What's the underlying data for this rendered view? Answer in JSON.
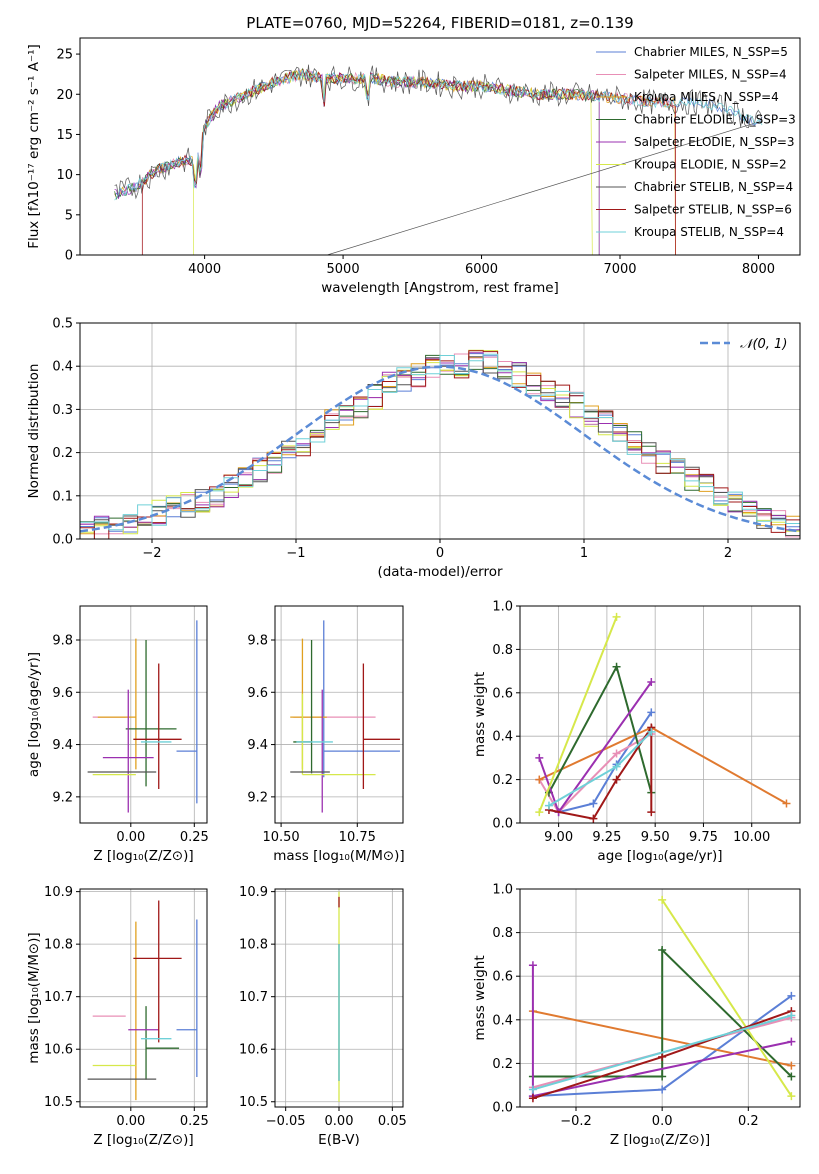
{
  "colors": {
    "chabrier_miles": "#5b7fd6",
    "salpeter_miles": "#e88fb6",
    "kroupa_miles": "#e0a020",
    "chabrier_elodie": "#2e6a2e",
    "salpeter_elodie": "#9b30b0",
    "kroupa_elodie": "#d6e84a",
    "chabrier_stelib": "#555555",
    "salpeter_stelib": "#a01818",
    "kroupa_stelib": "#6fd0d8",
    "orange_line": "#e07a30",
    "normal": "#5b8bd6"
  },
  "chart_data": [
    {
      "id": "spectrum",
      "type": "line",
      "title": "PLATE=0760, MJD=52264, FIBERID=0181, z=0.139",
      "xlabel": "wavelength [Angstrom, rest frame]",
      "ylabel": "Flux [fλ10⁻¹⁷ erg cm⁻² s⁻¹ A⁻¹]",
      "xlim": [
        3100,
        8300
      ],
      "ylim": [
        0,
        27
      ],
      "xticks": [
        4000,
        5000,
        6000,
        7000,
        8000
      ],
      "yticks": [
        0,
        5,
        10,
        15,
        20,
        25
      ],
      "legend_position": "top-right",
      "legend": [
        "Chabrier MILES, N_SSP=5",
        "Salpeter MILES, N_SSP=4",
        "Kroupa MILES, N_SSP=4",
        "Chabrier ELODIE, N_SSP=3",
        "Salpeter ELODIE, N_SSP=3",
        "Kroupa ELODIE, N_SSP=2",
        "Chabrier STELIB, N_SSP=4",
        "Salpeter STELIB, N_SSP=6",
        "Kroupa STELIB, N_SSP=4"
      ],
      "continuum": [
        [
          3350,
          7.5
        ],
        [
          3500,
          8.5
        ],
        [
          3650,
          10.5
        ],
        [
          3800,
          11.5
        ],
        [
          3950,
          12
        ],
        [
          4000,
          16
        ],
        [
          4100,
          18.5
        ],
        [
          4300,
          20
        ],
        [
          4500,
          21.5
        ],
        [
          4700,
          22.5
        ],
        [
          4860,
          22
        ],
        [
          5000,
          22
        ],
        [
          5200,
          22
        ],
        [
          5400,
          21.5
        ],
        [
          5600,
          21.5
        ],
        [
          5800,
          21
        ],
        [
          6000,
          21
        ],
        [
          6200,
          20.5
        ],
        [
          6400,
          20
        ],
        [
          6600,
          20
        ],
        [
          6800,
          19.8
        ],
        [
          7000,
          19.5
        ],
        [
          7200,
          19
        ],
        [
          7400,
          19
        ],
        [
          7600,
          19
        ],
        [
          7800,
          18
        ],
        [
          8000,
          16.5
        ]
      ]
    },
    {
      "id": "residuals",
      "type": "histogram",
      "xlabel": "(data-model)/error",
      "ylabel": "Normed distribution",
      "xlim": [
        -2.5,
        2.5
      ],
      "ylim": [
        0,
        0.5
      ],
      "xticks": [
        -2,
        -1,
        0,
        1,
        2
      ],
      "yticks": [
        0.0,
        0.1,
        0.2,
        0.3,
        0.4,
        0.5
      ],
      "grid": true,
      "legend_position": "top-right",
      "legend": [
        "𝒩(0, 1)"
      ],
      "bin_width": 0.1,
      "bin_start": -2.5,
      "reference_heights": [
        0.02,
        0.025,
        0.03,
        0.04,
        0.05,
        0.06,
        0.07,
        0.08,
        0.09,
        0.1,
        0.12,
        0.14,
        0.16,
        0.18,
        0.2,
        0.22,
        0.25,
        0.27,
        0.29,
        0.31,
        0.33,
        0.36,
        0.37,
        0.38,
        0.4,
        0.4,
        0.4,
        0.42,
        0.41,
        0.4,
        0.38,
        0.36,
        0.35,
        0.33,
        0.31,
        0.29,
        0.27,
        0.25,
        0.22,
        0.2,
        0.18,
        0.16,
        0.14,
        0.12,
        0.1,
        0.08,
        0.06,
        0.05,
        0.04,
        0.03
      ]
    },
    {
      "id": "Z-age",
      "type": "errorbar",
      "xlabel": "Z [log₁₀(Z/Z⊙)]",
      "ylabel": "age  [log₁₀(age/yr)]",
      "xlim": [
        -0.2,
        0.3
      ],
      "ylim": [
        9.1,
        9.93
      ],
      "xticks": [
        0.0,
        0.25
      ],
      "yticks": [
        9.2,
        9.4,
        9.6,
        9.8
      ],
      "points": [
        {
          "color": "chabrier_miles",
          "x": 0.26,
          "y": 9.375,
          "xerr": [
            0.08,
            0.0
          ],
          "yerr": [
            0.2,
            0.5
          ]
        },
        {
          "color": "salpeter_miles",
          "x": -0.15,
          "y": 9.505,
          "xerr": [
            0.0,
            0.13
          ],
          "yerr": [
            0.0,
            0.0
          ]
        },
        {
          "color": "kroupa_miles",
          "x": 0.02,
          "y": 9.505,
          "xerr": [
            0.15,
            0.0
          ],
          "yerr": [
            0.2,
            0.3
          ]
        },
        {
          "color": "chabrier_elodie",
          "x": 0.06,
          "y": 9.46,
          "xerr": [
            0.08,
            0.12
          ],
          "yerr": [
            0.22,
            0.34
          ]
        },
        {
          "color": "salpeter_elodie",
          "x": -0.01,
          "y": 9.35,
          "xerr": [
            0.1,
            0.1
          ],
          "yerr": [
            0.21,
            0.26
          ]
        },
        {
          "color": "kroupa_elodie",
          "x": -0.15,
          "y": 9.285,
          "xerr": [
            0.0,
            0.17
          ],
          "yerr": [
            0.0,
            0.0
          ]
        },
        {
          "color": "chabrier_stelib",
          "x": -0.05,
          "y": 9.295,
          "xerr": [
            0.12,
            0.15
          ],
          "yerr": [
            0.0,
            0.0
          ]
        },
        {
          "color": "salpeter_stelib",
          "x": 0.11,
          "y": 9.42,
          "xerr": [
            0.1,
            0.09
          ],
          "yerr": [
            0.19,
            0.29
          ]
        },
        {
          "color": "kroupa_stelib",
          "x": 0.04,
          "y": 9.41,
          "xerr": [
            0.0,
            0.12
          ],
          "yerr": [
            0.0,
            0.0
          ]
        }
      ]
    },
    {
      "id": "mass-age",
      "type": "errorbar",
      "xlabel": "mass [log₁₀(M/M⊙)]",
      "ylabel": "",
      "xlim": [
        10.48,
        10.9
      ],
      "ylim": [
        9.1,
        9.93
      ],
      "xticks": [
        10.5,
        10.75
      ],
      "yticks": [
        9.2,
        9.4,
        9.6,
        9.8
      ],
      "points": [
        {
          "color": "chabrier_miles",
          "x": 10.64,
          "y": 9.375,
          "xerr": [
            0.0,
            0.25
          ],
          "yerr": [
            0.1,
            0.5
          ]
        },
        {
          "color": "salpeter_miles",
          "x": 10.66,
          "y": 9.505,
          "xerr": [
            0.12,
            0.15
          ],
          "yerr": [
            0.0,
            0.0
          ]
        },
        {
          "color": "kroupa_miles",
          "x": 10.57,
          "y": 9.505,
          "xerr": [
            0.04,
            0.08
          ],
          "yerr": [
            0.2,
            0.3
          ]
        },
        {
          "color": "chabrier_elodie",
          "x": 10.6,
          "y": 9.41,
          "xerr": [
            0.06,
            0.0
          ],
          "yerr": [
            0.12,
            0.39
          ]
        },
        {
          "color": "salpeter_elodie",
          "x": 10.635,
          "y": 9.35,
          "xerr": [
            0.0,
            0.0
          ],
          "yerr": [
            0.21,
            0.26
          ]
        },
        {
          "color": "kroupa_elodie",
          "x": 10.57,
          "y": 9.285,
          "xerr": [
            0.0,
            0.24
          ],
          "yerr": [
            0.0,
            0.31
          ]
        },
        {
          "color": "chabrier_stelib",
          "x": 10.53,
          "y": 9.295,
          "xerr": [
            0.0,
            0.13
          ],
          "yerr": [
            0.0,
            0.0
          ]
        },
        {
          "color": "salpeter_stelib",
          "x": 10.77,
          "y": 9.42,
          "xerr": [
            0.0,
            0.12
          ],
          "yerr": [
            0.19,
            0.29
          ]
        },
        {
          "color": "kroupa_stelib",
          "x": 10.62,
          "y": 9.41,
          "xerr": [
            0.07,
            0.05
          ],
          "yerr": [
            0.0,
            0.0
          ]
        }
      ]
    },
    {
      "id": "age-weight",
      "type": "line",
      "xlabel": "age  [log₁₀(age/yr)]",
      "ylabel": "mass weight",
      "xlim": [
        8.8,
        10.25
      ],
      "ylim": [
        0,
        1.0
      ],
      "xticks": [
        9.0,
        9.25,
        9.5,
        9.75,
        10.0
      ],
      "yticks": [
        0.0,
        0.2,
        0.4,
        0.6,
        0.8,
        1.0
      ],
      "grid": true,
      "series": [
        {
          "color": "chabrier_miles",
          "x": [
            9.0,
            9.18,
            9.3,
            9.48
          ],
          "y": [
            0.05,
            0.09,
            0.27,
            0.51
          ]
        },
        {
          "color": "salpeter_miles",
          "x": [
            8.9,
            9.0,
            9.3,
            9.48
          ],
          "y": [
            0.2,
            0.05,
            0.32,
            0.41
          ]
        },
        {
          "color": "orange_line",
          "x": [
            8.9,
            9.48,
            10.18
          ],
          "y": [
            0.2,
            0.44,
            0.09
          ]
        },
        {
          "color": "chabrier_elodie",
          "x": [
            8.95,
            9.3,
            9.48
          ],
          "y": [
            0.14,
            0.72,
            0.14
          ]
        },
        {
          "color": "salpeter_elodie",
          "x": [
            8.9,
            9.0,
            9.48
          ],
          "y": [
            0.3,
            0.05,
            0.65
          ]
        },
        {
          "color": "kroupa_elodie",
          "x": [
            8.9,
            9.3
          ],
          "y": [
            0.05,
            0.95
          ]
        },
        {
          "color": "salpeter_stelib",
          "x": [
            8.95,
            9.18,
            9.3,
            9.48,
            9.48
          ],
          "y": [
            0.06,
            0.02,
            0.2,
            0.44,
            0.05
          ]
        },
        {
          "color": "kroupa_stelib",
          "x": [
            8.95,
            9.3,
            9.48
          ],
          "y": [
            0.08,
            0.26,
            0.42
          ]
        }
      ]
    },
    {
      "id": "Z-mass",
      "type": "errorbar",
      "xlabel": "Z [log₁₀(Z/Z⊙)]",
      "ylabel": "mass [log₁₀(M/M⊙)]",
      "xlim": [
        -0.2,
        0.3
      ],
      "ylim": [
        10.49,
        10.905
      ],
      "xticks": [
        0.0,
        0.25
      ],
      "yticks": [
        10.5,
        10.6,
        10.7,
        10.8,
        10.9
      ],
      "points": [
        {
          "color": "chabrier_miles",
          "x": 0.26,
          "y": 10.637,
          "xerr": [
            0.08,
            0.0
          ],
          "yerr": [
            0.09,
            0.21
          ]
        },
        {
          "color": "salpeter_miles",
          "x": -0.15,
          "y": 10.663,
          "xerr": [
            0.0,
            0.13
          ],
          "yerr": [
            0.0,
            0.0
          ]
        },
        {
          "color": "kroupa_miles",
          "x": 0.02,
          "y": 10.573,
          "xerr": [
            0.0,
            0.0
          ],
          "yerr": [
            0.07,
            0.27
          ]
        },
        {
          "color": "chabrier_elodie",
          "x": 0.06,
          "y": 10.602,
          "xerr": [
            0.0,
            0.13
          ],
          "yerr": [
            0.06,
            0.08
          ]
        },
        {
          "color": "salpeter_elodie",
          "x": -0.01,
          "y": 10.637,
          "xerr": [
            0.0,
            0.12
          ],
          "yerr": [
            0.0,
            0.0
          ]
        },
        {
          "color": "kroupa_elodie",
          "x": -0.15,
          "y": 10.569,
          "xerr": [
            0.0,
            0.17
          ],
          "yerr": [
            0.0,
            0.0
          ]
        },
        {
          "color": "chabrier_stelib",
          "x": -0.05,
          "y": 10.543,
          "xerr": [
            0.12,
            0.15
          ],
          "yerr": [
            0.0,
            0.0
          ]
        },
        {
          "color": "salpeter_stelib",
          "x": 0.11,
          "y": 10.773,
          "xerr": [
            0.1,
            0.09
          ],
          "yerr": [
            0.16,
            0.11
          ]
        },
        {
          "color": "kroupa_stelib",
          "x": 0.04,
          "y": 10.62,
          "xerr": [
            0.0,
            0.12
          ],
          "yerr": [
            0.0,
            0.0
          ]
        }
      ]
    },
    {
      "id": "ebv-mass",
      "type": "errorbar",
      "xlabel": "E(B-V)",
      "ylabel": "",
      "xlim": [
        -0.06,
        0.06
      ],
      "ylim": [
        10.49,
        10.905
      ],
      "xticks": [
        -0.05,
        0.0,
        0.05
      ],
      "yticks": [
        10.5,
        10.6,
        10.7,
        10.8,
        10.9
      ],
      "points": [
        {
          "color": "kroupa_elodie",
          "x": 0.0,
          "y": 10.7,
          "xerr": [
            0.0,
            0.0
          ],
          "yerr": [
            0.2,
            0.2
          ]
        },
        {
          "color": "salpeter_stelib",
          "x": 0.0,
          "y": 10.88,
          "xerr": [
            0.0,
            0.0
          ],
          "yerr": [
            0.01,
            0.01
          ]
        },
        {
          "color": "chabrier_elodie",
          "x": 0.0,
          "y": 10.7,
          "xerr": [
            0.0,
            0.0
          ],
          "yerr": [
            0.16,
            0.1
          ]
        },
        {
          "color": "kroupa_stelib",
          "x": 0.0,
          "y": 10.7,
          "xerr": [
            0.0,
            0.0
          ],
          "yerr": [
            0.16,
            0.1
          ]
        }
      ]
    },
    {
      "id": "Z-weight",
      "type": "line",
      "xlabel": "Z [log₁₀(Z/Z⊙)]",
      "ylabel": "mass weight",
      "xlim": [
        -0.33,
        0.32
      ],
      "ylim": [
        0,
        1.0
      ],
      "xticks": [
        -0.2,
        0.0,
        0.2
      ],
      "yticks": [
        0.0,
        0.2,
        0.4,
        0.6,
        0.8,
        1.0
      ],
      "grid": true,
      "series": [
        {
          "color": "chabrier_miles",
          "x": [
            -0.3,
            0.0,
            0.3
          ],
          "y": [
            0.05,
            0.08,
            0.51
          ]
        },
        {
          "color": "salpeter_miles",
          "x": [
            -0.3,
            0.3
          ],
          "y": [
            0.09,
            0.41
          ]
        },
        {
          "color": "orange_line",
          "x": [
            -0.3,
            0.3
          ],
          "y": [
            0.44,
            0.19
          ]
        },
        {
          "color": "chabrier_elodie",
          "x": [
            -0.3,
            0.0,
            0.0,
            0.3
          ],
          "y": [
            0.14,
            0.14,
            0.72,
            0.14
          ]
        },
        {
          "color": "salpeter_elodie",
          "x": [
            -0.3,
            -0.3,
            0.3
          ],
          "y": [
            0.65,
            0.05,
            0.3
          ]
        },
        {
          "color": "kroupa_elodie",
          "x": [
            0.0,
            0.3
          ],
          "y": [
            0.95,
            0.05
          ]
        },
        {
          "color": "salpeter_stelib",
          "x": [
            -0.3,
            0.0,
            0.3
          ],
          "y": [
            0.04,
            0.23,
            0.44
          ]
        },
        {
          "color": "kroupa_stelib",
          "x": [
            -0.3,
            0.3
          ],
          "y": [
            0.08,
            0.42
          ]
        }
      ]
    }
  ]
}
